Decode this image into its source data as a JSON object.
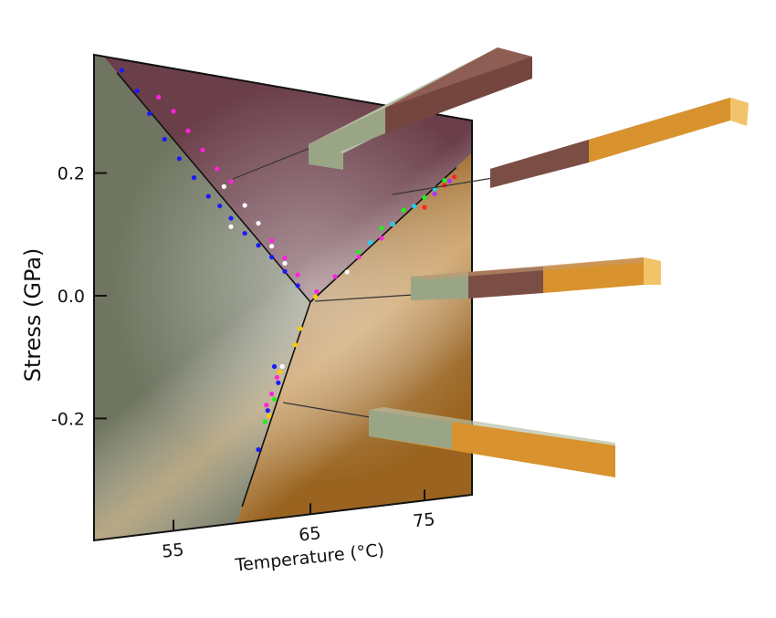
{
  "chart_data": {
    "type": "scatter",
    "title": "",
    "xlabel": "Temperature (°C)",
    "ylabel": "Stress (GPa)",
    "x_ticks": [
      55,
      65,
      75
    ],
    "x_tick_labels": [
      "55",
      "65",
      "75"
    ],
    "y_ticks": [
      0.2,
      0.0,
      -0.2
    ],
    "y_tick_labels": [
      "0.2",
      "0.0",
      "-0.2"
    ],
    "xlim": [
      49,
      79
    ],
    "ylim": [
      -0.39,
      0.39
    ],
    "grid": false,
    "legend": "none",
    "phase_colors": {
      "left": "#6f7560",
      "top": "#6b3f4a",
      "right": "#9a6420"
    },
    "bar_colors": {
      "grey_green": "#9aa586",
      "brown": "#7a4d45",
      "orange": "#d8922e"
    },
    "boundaries": [
      {
        "from": [
          51.3,
          0.37
        ],
        "to": [
          65,
          0.0
        ]
      },
      {
        "from": [
          65,
          0.0
        ],
        "to": [
          78.2,
          0.29
        ]
      },
      {
        "from": [
          65,
          0.0
        ],
        "to": [
          59.8,
          -0.37
        ]
      }
    ],
    "series": [
      {
        "color": "#1a1aff",
        "points": [
          [
            51.6,
            0.375
          ],
          [
            52.6,
            0.345
          ],
          [
            53.4,
            0.31
          ],
          [
            54.4,
            0.27
          ],
          [
            55.4,
            0.24
          ],
          [
            56.4,
            0.21
          ],
          [
            57.4,
            0.18
          ],
          [
            58.2,
            0.165
          ],
          [
            59.0,
            0.145
          ],
          [
            60.0,
            0.12
          ],
          [
            61,
            0.1
          ],
          [
            62,
            0.08
          ],
          [
            63,
            0.055
          ],
          [
            64,
            0.03
          ],
          [
            62.2,
            -0.12
          ],
          [
            62.5,
            -0.15
          ],
          [
            61.7,
            -0.2
          ],
          [
            61.0,
            -0.27
          ]
        ]
      },
      {
        "color": "#ff22dd",
        "points": [
          [
            54.0,
            0.34
          ],
          [
            55,
            0.32
          ],
          [
            56,
            0.29
          ],
          [
            57,
            0.26
          ],
          [
            58,
            0.23
          ],
          [
            59,
            0.21
          ],
          [
            60,
            0.17
          ],
          [
            61,
            0.14
          ],
          [
            62,
            0.11
          ],
          [
            63,
            0.08
          ],
          [
            64,
            0.05
          ],
          [
            65.5,
            0.02
          ],
          [
            67,
            0.05
          ],
          [
            69,
            0.09
          ],
          [
            71,
            0.13
          ],
          [
            62.4,
            -0.14
          ],
          [
            62,
            -0.17
          ],
          [
            61.6,
            -0.19
          ]
        ]
      },
      {
        "color": "#ffffff",
        "points": [
          [
            58.5,
            0.2
          ],
          [
            60,
            0.17
          ],
          [
            61,
            0.14
          ],
          [
            62,
            0.1
          ],
          [
            63,
            0.07
          ],
          [
            59,
            0.13
          ],
          [
            70,
            0.12
          ],
          [
            72,
            0.16
          ],
          [
            62.8,
            -0.12
          ],
          [
            68,
            0.06
          ]
        ]
      },
      {
        "color": "#22ee22",
        "points": [
          [
            69,
            0.1
          ],
          [
            71,
            0.15
          ],
          [
            73,
            0.19
          ],
          [
            75,
            0.22
          ],
          [
            77,
            0.26
          ],
          [
            62.2,
            -0.18
          ],
          [
            61.5,
            -0.22
          ]
        ]
      },
      {
        "color": "#22ccee",
        "points": [
          [
            70,
            0.12
          ],
          [
            72,
            0.16
          ],
          [
            74,
            0.2
          ],
          [
            76,
            0.24
          ],
          [
            78,
            0.27
          ]
        ]
      },
      {
        "color": "#ff2222",
        "points": [
          [
            75,
            0.2
          ],
          [
            77,
            0.25
          ],
          [
            78,
            0.27
          ]
        ]
      },
      {
        "color": "#ffcc00",
        "points": [
          [
            64.2,
            -0.05
          ],
          [
            63.8,
            -0.08
          ],
          [
            62.6,
            -0.13
          ],
          [
            61.8,
            -0.21
          ],
          [
            65.4,
            0.01
          ]
        ]
      },
      {
        "color": "#aa33ff",
        "points": [
          [
            76,
            0.23
          ],
          [
            77.5,
            0.26
          ]
        ]
      }
    ]
  }
}
